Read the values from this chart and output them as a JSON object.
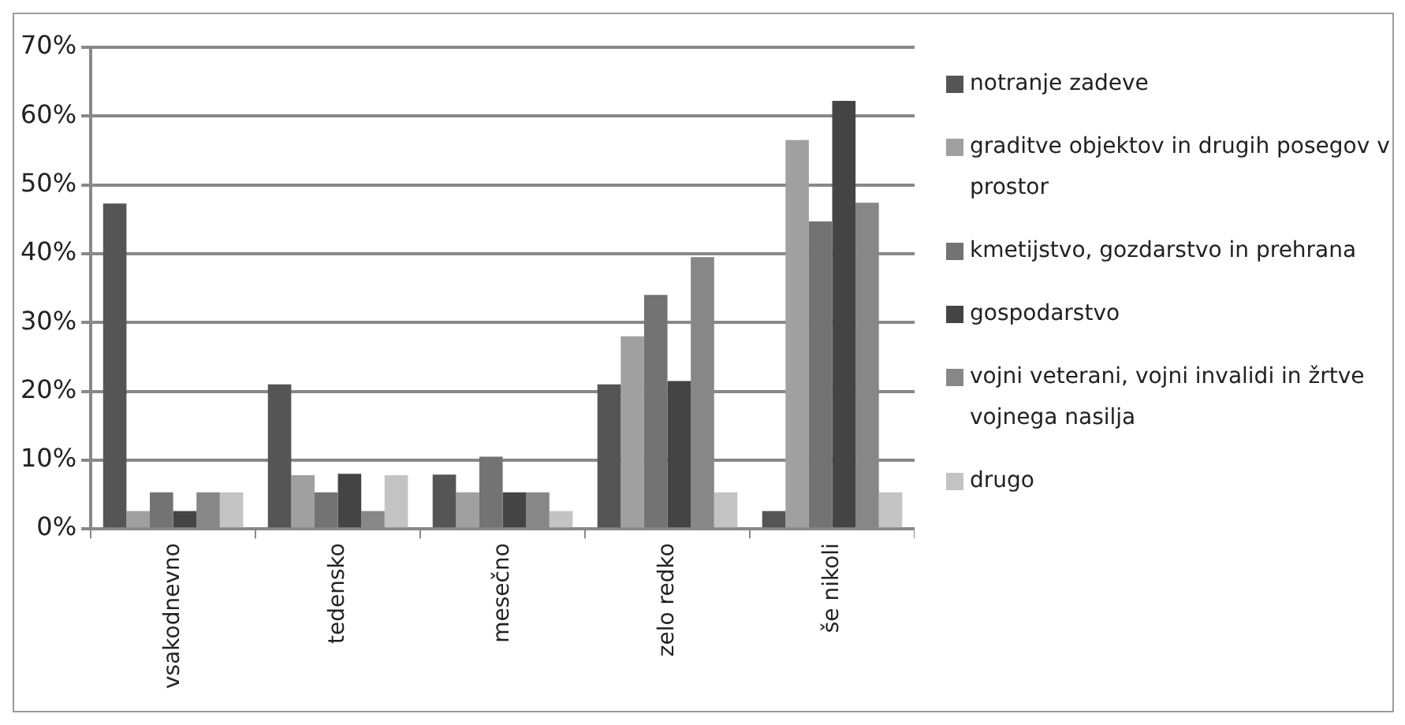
{
  "chart_data": {
    "type": "bar",
    "categories": [
      "vsakodnevno",
      "tedensko",
      "mesečno",
      "zelo redko",
      "še nikoli"
    ],
    "series": [
      {
        "name": "notranje zadeve",
        "color": "#555555",
        "values": [
          47.3,
          21,
          7.9,
          21,
          2.6
        ]
      },
      {
        "name": "graditve objektov in drugih posegov v prostor",
        "color": "#a0a0a0",
        "values": [
          2.6,
          7.8,
          5.3,
          28,
          56.5
        ]
      },
      {
        "name": "kmetijstvo, gozdarstvo in prehrana",
        "color": "#737373",
        "values": [
          5.3,
          5.3,
          10.5,
          34,
          44.7
        ]
      },
      {
        "name": "gospodarstvo",
        "color": "#444444",
        "values": [
          2.6,
          8,
          5.3,
          21.5,
          62.2
        ]
      },
      {
        "name": "vojni veterani, vojni invalidi in žrtve vojnega nasilja",
        "color": "#878787",
        "values": [
          5.3,
          2.6,
          5.3,
          39.5,
          47.4
        ]
      },
      {
        "name": "drugo",
        "color": "#c3c3c3",
        "values": [
          5.3,
          7.8,
          2.6,
          5.3,
          5.3
        ]
      }
    ],
    "ylim": [
      0,
      70
    ],
    "yticks": [
      {
        "value": 0,
        "label": "0%"
      },
      {
        "value": 10,
        "label": "10%"
      },
      {
        "value": 20,
        "label": "20%"
      },
      {
        "value": 30,
        "label": "30%"
      },
      {
        "value": 40,
        "label": "40%"
      },
      {
        "value": 50,
        "label": "50%"
      },
      {
        "value": 60,
        "label": "60%"
      },
      {
        "value": 70,
        "label": "70%"
      }
    ],
    "grid": "y",
    "legend": "right"
  }
}
